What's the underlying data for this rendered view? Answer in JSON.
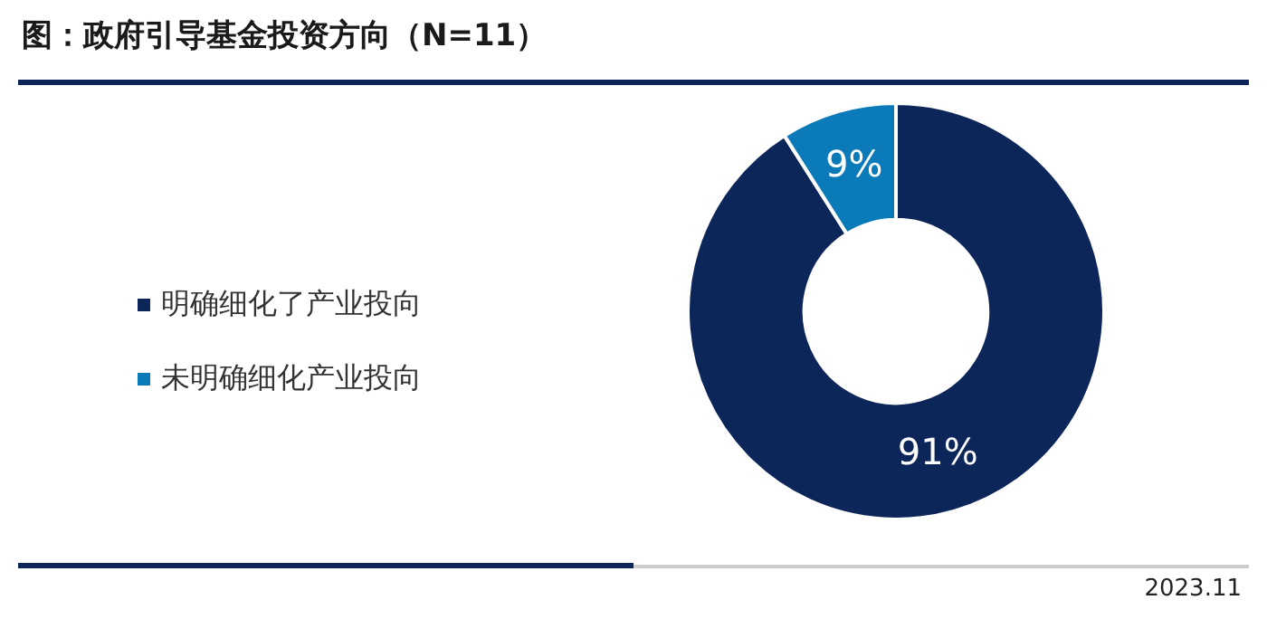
{
  "chart_data": {
    "type": "donut",
    "title": "图：政府引导基金投资方向（N=11）",
    "categories": [
      "明确细化了产业投向",
      "未明确细化产业投向"
    ],
    "values": [
      91,
      9
    ],
    "colors": [
      "#0c2659",
      "#0a7ab8"
    ],
    "value_labels": [
      "91%",
      "9%"
    ],
    "legend": "left",
    "annotations": [
      "2023.11"
    ]
  }
}
